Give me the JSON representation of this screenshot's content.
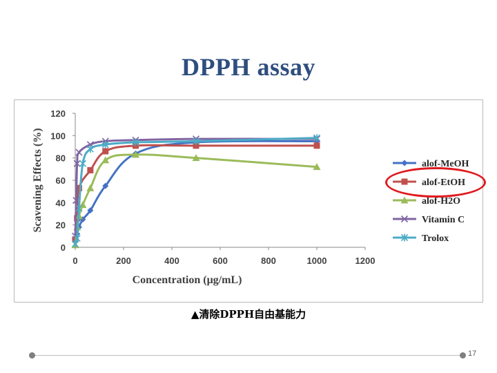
{
  "slide": {
    "title": "DPPH assay",
    "caption": "▲清除DPPH自由基能力",
    "page_number": "17"
  },
  "chart_data": {
    "type": "line",
    "xlabel": "Concentration (μg/mL)",
    "ylabel": "Scavening Effects (%)",
    "xlim": [
      0,
      1200
    ],
    "ylim": [
      0,
      120
    ],
    "xticks": [
      0,
      200,
      400,
      600,
      800,
      1000,
      1200
    ],
    "yticks": [
      0,
      20,
      40,
      60,
      80,
      100,
      120
    ],
    "grid": false,
    "legend_position": "right",
    "series": [
      {
        "name": "alof-MeOH",
        "color": "#4472c4",
        "marker": "diamond",
        "points": [
          [
            0,
            5
          ],
          [
            7.8,
            12
          ],
          [
            15.6,
            18
          ],
          [
            31.3,
            25
          ],
          [
            62.5,
            33
          ],
          [
            125,
            55
          ],
          [
            250,
            84
          ],
          [
            500,
            94
          ],
          [
            1000,
            95
          ]
        ]
      },
      {
        "name": "alof-EtOH",
        "color": "#c0504d",
        "marker": "square",
        "points": [
          [
            0,
            7
          ],
          [
            7.8,
            26
          ],
          [
            15.6,
            53
          ],
          [
            62.5,
            69
          ],
          [
            125,
            86
          ],
          [
            250,
            91
          ],
          [
            500,
            91
          ],
          [
            1000,
            91
          ]
        ]
      },
      {
        "name": "alof-H2O",
        "color": "#9bbb59",
        "marker": "triangle",
        "points": [
          [
            0,
            2
          ],
          [
            7.8,
            18
          ],
          [
            15.6,
            28
          ],
          [
            31.3,
            38
          ],
          [
            62.5,
            53
          ],
          [
            125,
            78
          ],
          [
            250,
            83
          ],
          [
            500,
            80
          ],
          [
            1000,
            72
          ]
        ]
      },
      {
        "name": "Vitamin C",
        "color": "#8064a2",
        "marker": "x",
        "points": [
          [
            0,
            10
          ],
          [
            3.9,
            42
          ],
          [
            7.8,
            75
          ],
          [
            15.6,
            85
          ],
          [
            62.5,
            92
          ],
          [
            125,
            95
          ],
          [
            250,
            96
          ],
          [
            500,
            97
          ],
          [
            1000,
            97
          ]
        ]
      },
      {
        "name": "Trolox",
        "color": "#4bacc6",
        "marker": "star",
        "points": [
          [
            0,
            3
          ],
          [
            7.8,
            8
          ],
          [
            15.6,
            35
          ],
          [
            31.3,
            75
          ],
          [
            62.5,
            88
          ],
          [
            125,
            92
          ],
          [
            250,
            94
          ],
          [
            500,
            95
          ],
          [
            1000,
            98
          ]
        ]
      }
    ],
    "highlight": {
      "series": "alof-EtOH",
      "color": "#e0191e"
    }
  }
}
